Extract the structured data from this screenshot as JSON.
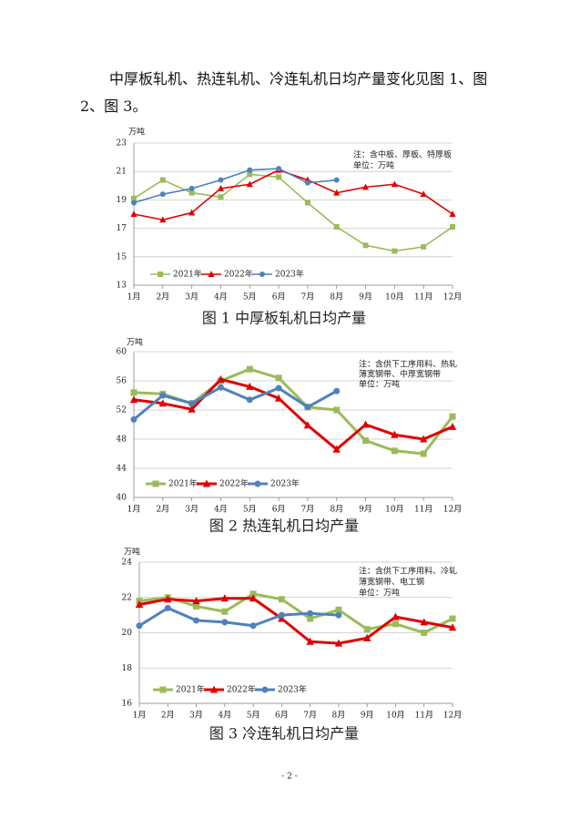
{
  "paragraph": "中厚板轧机、热连轧机、冷连轧机日均产量变化见图 1、图 2、图 3。",
  "page_number": "- 2 -",
  "chart_data": [
    {
      "type": "line",
      "title": "图 1   中厚板轧机日均产量",
      "y_label": "万吨",
      "note": [
        "注：含中板、厚板、特厚板",
        "单位：万吨"
      ],
      "categories": [
        "1月",
        "2月",
        "3月",
        "4月",
        "5月",
        "6月",
        "7月",
        "8月",
        "9月",
        "10月",
        "11月",
        "12月"
      ],
      "ylim": [
        13,
        23
      ],
      "yticks": [
        13,
        15,
        17,
        19,
        21,
        23
      ],
      "grid": true,
      "legend": "bottom-left",
      "series": [
        {
          "name": "2021年",
          "color": "#9bbb59",
          "marker": "square",
          "values": [
            19.1,
            20.4,
            19.5,
            19.2,
            20.8,
            20.6,
            18.8,
            17.1,
            15.8,
            15.4,
            15.7,
            17.1
          ]
        },
        {
          "name": "2022年",
          "color": "#e00000",
          "marker": "triangle",
          "values": [
            18.0,
            17.6,
            18.1,
            19.8,
            20.1,
            21.1,
            20.4,
            19.5,
            19.9,
            20.1,
            19.4,
            18.0
          ]
        },
        {
          "name": "2023年",
          "color": "#4f81bd",
          "marker": "circle",
          "values": [
            18.8,
            19.4,
            19.8,
            20.4,
            21.1,
            21.2,
            20.2,
            20.4,
            null,
            null,
            null,
            null
          ]
        }
      ]
    },
    {
      "type": "line",
      "title": "图 2   热连轧机日均产量",
      "y_label": "万吨",
      "note": [
        "注：含供下工序用料、热轧",
        "薄宽钢带、中厚宽钢带",
        "单位：万吨"
      ],
      "categories": [
        "1月",
        "2月",
        "3月",
        "4月",
        "5月",
        "6月",
        "7月",
        "8月",
        "9月",
        "10月",
        "11月",
        "12月"
      ],
      "ylim": [
        40,
        60
      ],
      "yticks": [
        40,
        44,
        48,
        52,
        56,
        60
      ],
      "grid": true,
      "legend": "bottom-left",
      "series": [
        {
          "name": "2021年",
          "color": "#9bbb59",
          "marker": "square",
          "values": [
            54.4,
            54.2,
            52.9,
            56.0,
            57.6,
            56.4,
            52.4,
            52.0,
            47.8,
            46.4,
            46.0,
            51.1
          ]
        },
        {
          "name": "2022年",
          "color": "#e00000",
          "marker": "triangle",
          "values": [
            53.4,
            52.9,
            52.1,
            56.2,
            55.2,
            53.6,
            49.9,
            46.6,
            50.0,
            48.6,
            48.0,
            49.7
          ]
        },
        {
          "name": "2023年",
          "color": "#4f81bd",
          "marker": "circle",
          "values": [
            50.7,
            54.0,
            52.9,
            55.1,
            53.4,
            55.0,
            52.4,
            54.6,
            null,
            null,
            null,
            null
          ]
        }
      ]
    },
    {
      "type": "line",
      "title": "图 3   冷连轧机日均产量",
      "y_label": "万吨",
      "note": [
        "注：含供下工序用料、冷轧",
        "薄宽钢带、电工钢",
        "单位：万吨"
      ],
      "categories": [
        "1月",
        "2月",
        "3月",
        "4月",
        "5月",
        "6月",
        "7月",
        "8月",
        "9月",
        "10月",
        "11月",
        "12月"
      ],
      "ylim": [
        16,
        24
      ],
      "yticks": [
        16,
        18,
        20,
        22,
        24
      ],
      "grid": true,
      "legend": "bottom-left",
      "series": [
        {
          "name": "2021年",
          "color": "#9bbb59",
          "marker": "square",
          "values": [
            21.8,
            22.0,
            21.5,
            21.2,
            22.2,
            21.9,
            20.8,
            21.3,
            20.2,
            20.5,
            20.0,
            20.8
          ]
        },
        {
          "name": "2022年",
          "color": "#e00000",
          "marker": "triangle",
          "values": [
            21.6,
            21.9,
            21.8,
            21.95,
            21.95,
            20.8,
            19.5,
            19.4,
            19.7,
            20.9,
            20.6,
            20.3
          ]
        },
        {
          "name": "2023年",
          "color": "#4f81bd",
          "marker": "circle",
          "values": [
            20.4,
            21.4,
            20.7,
            20.6,
            20.4,
            21.0,
            21.1,
            21.0,
            null,
            null,
            null,
            null
          ]
        }
      ]
    }
  ]
}
